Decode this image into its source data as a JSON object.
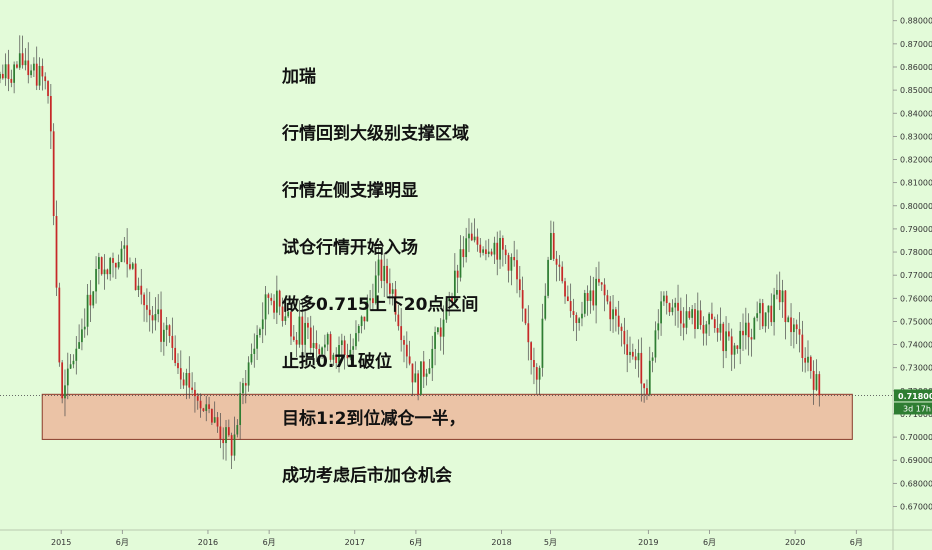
{
  "annotation": {
    "lines": [
      "加瑞",
      "行情回到大级别支撑区域",
      "行情左侧支撑明显",
      "试仓行情开始入场",
      "做多0.715上下20点区间",
      "止损0.71破位",
      "目标1:2到位减仓一半，",
      "成功考虑后市加仓机会"
    ]
  },
  "price_badge": {
    "value": "0.71800",
    "timer": "3d 17h"
  },
  "colors": {
    "background": "#e3fbd9",
    "up_candle": "#2e7d32",
    "down_candle": "#c62828",
    "wick": "#4a4a4a",
    "support_zone": "#ebc3a6",
    "support_zone_border": "#8b3a2a",
    "badge_bg": "#2e7d32"
  },
  "chart_data": {
    "type": "candlestick",
    "title": "",
    "ylim": [
      0.662,
      0.8855
    ],
    "y_ticks": [
      0.67,
      0.68,
      0.69,
      0.7,
      0.71,
      0.72,
      0.73,
      0.74,
      0.75,
      0.76,
      0.77,
      0.78,
      0.79,
      0.8,
      0.81,
      0.82,
      0.83,
      0.84,
      0.85,
      0.86,
      0.87,
      0.88
    ],
    "y_tick_labels": [
      "0.67000",
      "0.68000",
      "0.69000",
      "0.70000",
      "0.71000",
      "0.72000",
      "0.73000",
      "0.74000",
      "0.75000",
      "0.76000",
      "0.77000",
      "0.78000",
      "0.79000",
      "0.80000",
      "0.81000",
      "0.82000",
      "0.83000",
      "0.84000",
      "0.85000",
      "0.86000",
      "0.87000",
      "0.88000"
    ],
    "x_range": [
      "2014-08",
      "2020-09"
    ],
    "x_ticks": [
      {
        "date": "2015-01",
        "label": "2015"
      },
      {
        "date": "2015-06",
        "label": "6月"
      },
      {
        "date": "2016-01",
        "label": "2016"
      },
      {
        "date": "2016-06",
        "label": "6月"
      },
      {
        "date": "2017-01",
        "label": "2017"
      },
      {
        "date": "2017-06",
        "label": "6月"
      },
      {
        "date": "2018-01",
        "label": "2018"
      },
      {
        "date": "2018-05",
        "label": "5月"
      },
      {
        "date": "2019-01",
        "label": "2019"
      },
      {
        "date": "2019-06",
        "label": "6月"
      },
      {
        "date": "2020-01",
        "label": "2020"
      },
      {
        "date": "2020-06",
        "label": "6月"
      }
    ],
    "support_zone": {
      "from": "2014-09",
      "to": "2020-06",
      "low": 0.699,
      "high": 0.7185
    },
    "current_price_line": 0.718,
    "grid": false,
    "price_series": [
      {
        "date": "2014-08",
        "price": 0.855
      },
      {
        "date": "2014-10",
        "price": 0.862
      },
      {
        "date": "2014-12",
        "price": 0.852
      },
      {
        "date": "2015-01",
        "price": 0.712
      },
      {
        "date": "2015-02",
        "price": 0.735
      },
      {
        "date": "2015-04",
        "price": 0.773
      },
      {
        "date": "2015-06",
        "price": 0.782
      },
      {
        "date": "2015-08",
        "price": 0.755
      },
      {
        "date": "2015-10",
        "price": 0.74
      },
      {
        "date": "2015-11",
        "price": 0.728
      },
      {
        "date": "2016-01",
        "price": 0.71
      },
      {
        "date": "2016-03",
        "price": 0.695
      },
      {
        "date": "2016-04",
        "price": 0.725
      },
      {
        "date": "2016-06",
        "price": 0.762
      },
      {
        "date": "2016-08",
        "price": 0.748
      },
      {
        "date": "2016-10",
        "price": 0.742
      },
      {
        "date": "2016-12",
        "price": 0.735
      },
      {
        "date": "2017-01",
        "price": 0.74
      },
      {
        "date": "2017-03",
        "price": 0.772
      },
      {
        "date": "2017-04",
        "price": 0.765
      },
      {
        "date": "2017-06",
        "price": 0.722
      },
      {
        "date": "2017-08",
        "price": 0.745
      },
      {
        "date": "2017-10",
        "price": 0.782
      },
      {
        "date": "2017-12",
        "price": 0.785
      },
      {
        "date": "2018-02",
        "price": 0.775
      },
      {
        "date": "2018-03",
        "price": 0.742
      },
      {
        "date": "2018-04",
        "price": 0.728
      },
      {
        "date": "2018-05",
        "price": 0.785
      },
      {
        "date": "2018-07",
        "price": 0.752
      },
      {
        "date": "2018-09",
        "price": 0.765
      },
      {
        "date": "2018-11",
        "price": 0.743
      },
      {
        "date": "2019-01",
        "price": 0.723
      },
      {
        "date": "2019-02",
        "price": 0.762
      },
      {
        "date": "2019-04",
        "price": 0.752
      },
      {
        "date": "2019-06",
        "price": 0.748
      },
      {
        "date": "2019-08",
        "price": 0.738
      },
      {
        "date": "2019-10",
        "price": 0.752
      },
      {
        "date": "2019-12",
        "price": 0.758
      },
      {
        "date": "2020-01",
        "price": 0.745
      },
      {
        "date": "2020-02",
        "price": 0.735
      },
      {
        "date": "2020-03",
        "price": 0.718
      }
    ]
  }
}
